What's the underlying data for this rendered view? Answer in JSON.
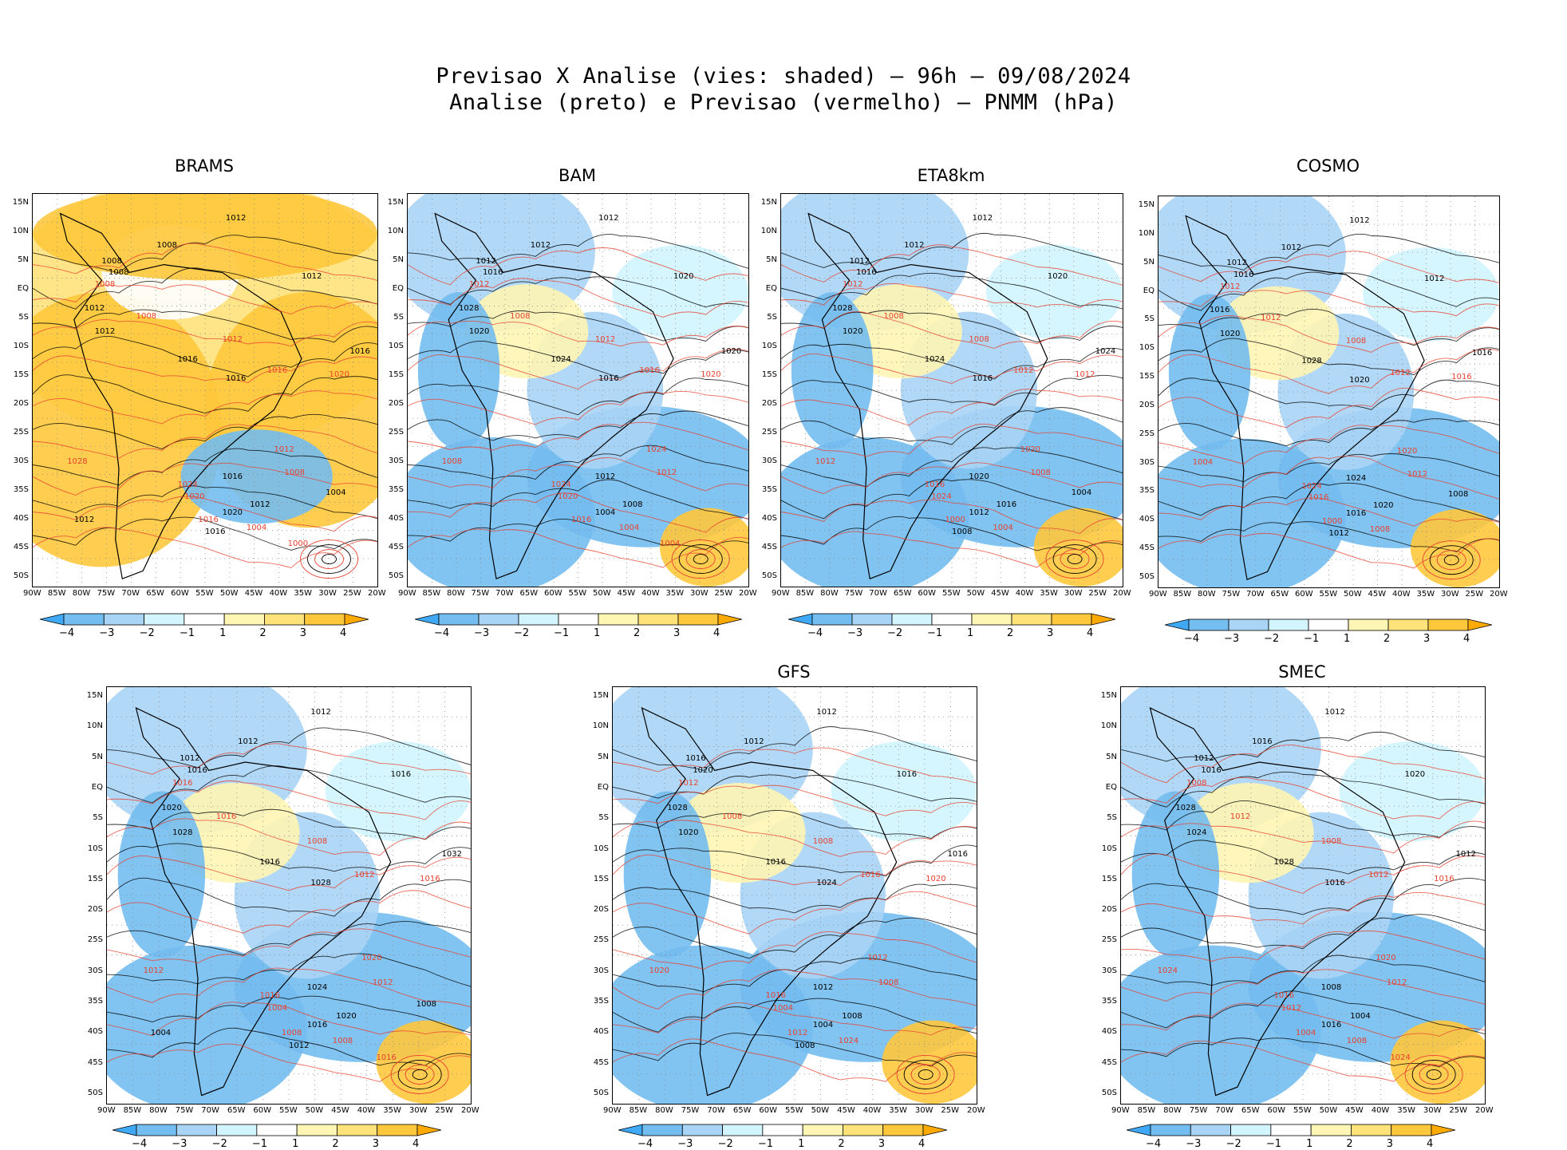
{
  "header": {
    "line1": "Previsao X Analise (vies: shaded) – 96h – 09/08/2024",
    "line2": "Analise (preto) e Previsao (vermelho) – PNMM (hPa)"
  },
  "axes": {
    "lat_labels": [
      "15N",
      "10N",
      "5N",
      "EQ",
      "5S",
      "10S",
      "15S",
      "20S",
      "25S",
      "30S",
      "35S",
      "40S",
      "45S",
      "50S"
    ],
    "lon_labels": [
      "90W",
      "85W",
      "80W",
      "75W",
      "70W",
      "65W",
      "60W",
      "55W",
      "50W",
      "45W",
      "40W",
      "35W",
      "30W",
      "25W",
      "20W"
    ]
  },
  "colorbar": {
    "labels": [
      "−4",
      "−3",
      "−2",
      "−1",
      "1",
      "2",
      "3",
      "4"
    ],
    "colors": [
      "#3fa9f5",
      "#73bdf0",
      "#a9d4f5",
      "#d2f5ff",
      "#ffffff",
      "#fff5b4",
      "#ffe27a",
      "#ffc83c",
      "#ffaa00"
    ]
  },
  "contour_colors": {
    "analysis": "#000000",
    "forecast": "#e8412f"
  },
  "panels": [
    {
      "title": "BRAMS",
      "labels_black": [
        "1012",
        "1008",
        "1008",
        "1008",
        "1012",
        "1012",
        "1012",
        "1016",
        "1016",
        "1016",
        "1016",
        "1012",
        "1020",
        "1016",
        "1004",
        "1012"
      ],
      "labels_red": [
        "1008",
        "1008",
        "1012",
        "1016",
        "1020",
        "1012",
        "1008",
        "1004",
        "1028",
        "1024",
        "1020",
        "1016",
        "1000"
      ]
    },
    {
      "title": "BAM",
      "labels_black": [
        "1012",
        "1012",
        "1012",
        "1016",
        "1020",
        "1028",
        "1020",
        "1024",
        "1016",
        "1020",
        "1012",
        "1008",
        "1004"
      ],
      "labels_red": [
        "1012",
        "1008",
        "1012",
        "1016",
        "1020",
        "1024",
        "1012",
        "1004",
        "1008",
        "1024",
        "1020",
        "1016",
        "1004"
      ]
    },
    {
      "title": "ETA8km",
      "labels_black": [
        "1012",
        "1012",
        "1012",
        "1016",
        "1020",
        "1028",
        "1020",
        "1024",
        "1016",
        "1024",
        "1020",
        "1016",
        "1012",
        "1008",
        "1004"
      ],
      "labels_red": [
        "1012",
        "1008",
        "1008",
        "1012",
        "1012",
        "1020",
        "1008",
        "1004",
        "1012",
        "1016",
        "1024",
        "1000"
      ]
    },
    {
      "title": "COSMO",
      "labels_black": [
        "1012",
        "1012",
        "1012",
        "1016",
        "1012",
        "1016",
        "1020",
        "1028",
        "1020",
        "1016",
        "1024",
        "1020",
        "1016",
        "1012",
        "1008"
      ],
      "labels_red": [
        "1012",
        "1012",
        "1008",
        "1012",
        "1016",
        "1020",
        "1012",
        "1008",
        "1004",
        "1024",
        "1016",
        "1000"
      ]
    },
    {
      "title": "",
      "labels_black": [
        "1012",
        "1012",
        "1012",
        "1016",
        "1016",
        "1020",
        "1028",
        "1016",
        "1028",
        "1032",
        "1024",
        "1020",
        "1016",
        "1012",
        "1008",
        "1004"
      ],
      "labels_red": [
        "1016",
        "1016",
        "1008",
        "1012",
        "1016",
        "1020",
        "1012",
        "1008",
        "1012",
        "1016",
        "1004",
        "1008",
        "1016"
      ]
    },
    {
      "title": "GFS",
      "labels_black": [
        "1012",
        "1012",
        "1016",
        "1020",
        "1016",
        "1028",
        "1020",
        "1016",
        "1024",
        "1016",
        "1012",
        "1008",
        "1004",
        "1008"
      ],
      "labels_red": [
        "1012",
        "1008",
        "1008",
        "1016",
        "1020",
        "1012",
        "1008",
        "1024",
        "1020",
        "1016",
        "1004",
        "1012"
      ]
    },
    {
      "title": "SMEC",
      "labels_black": [
        "1012",
        "1016",
        "1012",
        "1016",
        "1020",
        "1028",
        "1024",
        "1028",
        "1016",
        "1012",
        "1008",
        "1004",
        "1016"
      ],
      "labels_red": [
        "1008",
        "1012",
        "1008",
        "1012",
        "1016",
        "1020",
        "1012",
        "1008",
        "1024",
        "1016",
        "1012",
        "1004",
        "1024"
      ]
    }
  ]
}
